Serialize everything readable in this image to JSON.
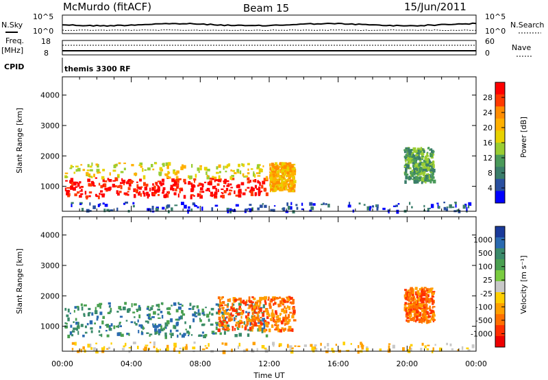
{
  "header": {
    "station": "McMurdo (fitACF)",
    "beam": "Beam 15",
    "date": "15/Jun/2011"
  },
  "top_panels": {
    "nsky_label": "N.Sky",
    "nsky_ticks": [
      "10^5",
      "10^0"
    ],
    "nsearch_label": "N.Search",
    "nsearch_ticks": [
      "10^5",
      "10^0"
    ],
    "freq_label": "Freq.",
    "freq_unit": "[MHz]",
    "freq_ticks": [
      "18",
      "8"
    ],
    "nave_label": "Nave",
    "nave_ticks": [
      "60",
      "0"
    ],
    "cpid_label": "CPID",
    "cpid_value": "themis 3300 RF"
  },
  "chart_data": [
    {
      "type": "heatmap",
      "name": "power-panel",
      "xlabel": "",
      "ylabel": "Slant Range [km]",
      "x_range_hours": [
        0,
        24
      ],
      "ylim": [
        180,
        4600
      ],
      "yticks": [
        1000,
        2000,
        3000,
        4000
      ],
      "x_ticks_hours": [
        0,
        4,
        8,
        12,
        16,
        20,
        24
      ],
      "colorbar": {
        "label": "Power [dB]",
        "ticks": [
          "28",
          "24",
          "20",
          "16",
          "12",
          "8",
          "4"
        ],
        "colors": [
          "#ff0000",
          "#ff3a00",
          "#ff8c00",
          "#ffb000",
          "#e8d200",
          "#9acd32",
          "#4a9a5a",
          "#3a7d6a",
          "#2a50a0",
          "#0000ff"
        ]
      },
      "echo_regions": [
        {
          "t": [
            0.1,
            11.8
          ],
          "r": [
            700,
            1300
          ],
          "level": 0
        },
        {
          "t": [
            0.1,
            11.8
          ],
          "r": [
            1300,
            1800
          ],
          "level": 4
        },
        {
          "t": [
            12.0,
            13.4
          ],
          "r": [
            900,
            1800
          ],
          "level": 3
        },
        {
          "t": [
            19.8,
            21.5
          ],
          "r": [
            1200,
            2300
          ],
          "level": 6
        },
        {
          "t": [
            0.3,
            23.9
          ],
          "r": [
            200,
            500
          ],
          "level": 8
        }
      ]
    },
    {
      "type": "heatmap",
      "name": "velocity-panel",
      "xlabel": "Time UT",
      "ylabel": "Slant Range [km]",
      "x_range_hours": [
        0,
        24
      ],
      "ylim": [
        180,
        4600
      ],
      "yticks": [
        1000,
        2000,
        3000,
        4000
      ],
      "x_ticks_hours": [
        0,
        4,
        8,
        12,
        16,
        20,
        24
      ],
      "x_tick_labels": [
        "00:00",
        "04:00",
        "08:00",
        "12:00",
        "16:00",
        "20:00",
        "00:00"
      ],
      "colorbar": {
        "label": "Velocity [m s⁻¹]",
        "ticks": [
          "1000",
          "500",
          "100",
          "25",
          "-25",
          "-100",
          "-500",
          "-1000"
        ],
        "colors": [
          "#1a3a9a",
          "#2a6ab0",
          "#3a8a6a",
          "#4aa050",
          "#7acc40",
          "#c8c8c8",
          "#ffd000",
          "#ffa000",
          "#ff7000",
          "#ff3000",
          "#ee0000"
        ]
      },
      "echo_regions": [
        {
          "t": [
            0.1,
            11.8
          ],
          "r": [
            700,
            1800
          ],
          "level": 2
        },
        {
          "t": [
            9.0,
            13.4
          ],
          "r": [
            900,
            2000
          ],
          "level": 8
        },
        {
          "t": [
            19.8,
            21.5
          ],
          "r": [
            1200,
            2300
          ],
          "level": 8
        },
        {
          "t": [
            0.3,
            23.9
          ],
          "r": [
            200,
            500
          ],
          "level": 6
        }
      ]
    }
  ]
}
